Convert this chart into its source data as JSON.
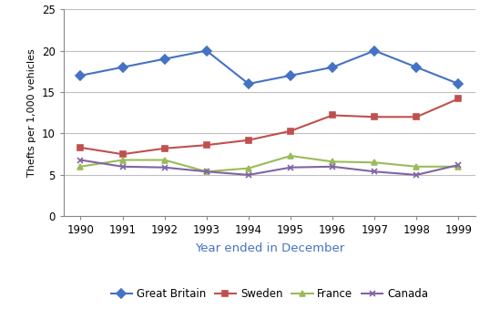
{
  "years": [
    1990,
    1991,
    1992,
    1993,
    1994,
    1995,
    1996,
    1997,
    1998,
    1999
  ],
  "great_britain": [
    17,
    18,
    19,
    20,
    16,
    17,
    18,
    20,
    18,
    16
  ],
  "sweden": [
    8.3,
    7.5,
    8.2,
    8.6,
    9.2,
    10.3,
    12.2,
    12.0,
    12.0,
    14.2
  ],
  "france": [
    6.0,
    6.8,
    6.8,
    5.4,
    5.8,
    7.3,
    6.6,
    6.5,
    6.0,
    6.0
  ],
  "canada": [
    6.8,
    6.0,
    5.9,
    5.4,
    5.0,
    5.9,
    6.0,
    5.4,
    5.0,
    6.2
  ],
  "colors": {
    "great_britain": "#4472C4",
    "sweden": "#C0504D",
    "france": "#9BBB59",
    "canada": "#8064A2"
  },
  "markers": {
    "great_britain": "D",
    "sweden": "s",
    "france": "^",
    "canada": "x"
  },
  "xlabel": "Year ended in December",
  "ylabel": "Thefts per 1,000 vehicles",
  "ylim": [
    0,
    25
  ],
  "yticks": [
    0,
    5,
    10,
    15,
    20,
    25
  ],
  "xlabel_color": "#4472C4",
  "legend_labels": [
    "Great Britain",
    "Sweden",
    "France",
    "Canada"
  ],
  "background_color": "#ffffff",
  "grid_color": "#c0c0c0",
  "linewidth": 1.5,
  "markersize": 5
}
